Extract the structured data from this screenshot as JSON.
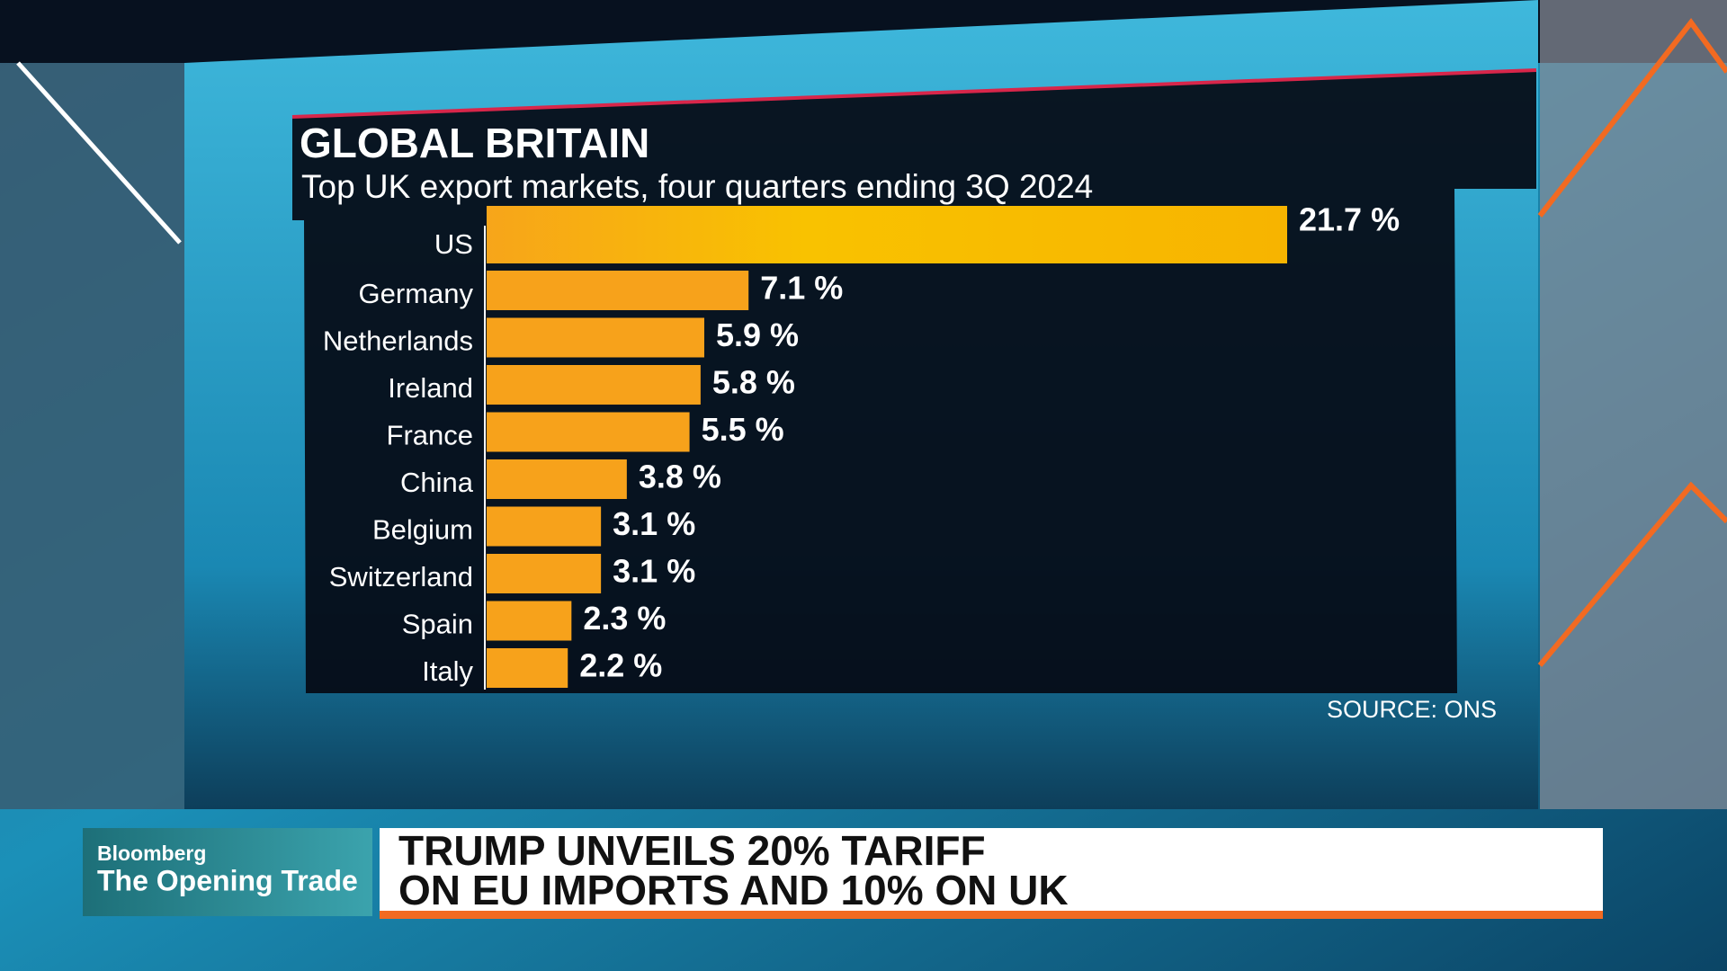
{
  "chart_data": {
    "type": "bar",
    "orientation": "horizontal",
    "title": "GLOBAL BRITAIN",
    "subtitle": "Top UK export markets, four quarters ending 3Q 2024",
    "categories": [
      "US",
      "Germany",
      "Netherlands",
      "Ireland",
      "France",
      "China",
      "Belgium",
      "Switzerland",
      "Spain",
      "Italy"
    ],
    "values": [
      21.7,
      7.1,
      5.9,
      5.8,
      5.5,
      3.8,
      3.1,
      3.1,
      2.3,
      2.2
    ],
    "value_labels": [
      "21.7 %",
      "7.1 %",
      "5.9 %",
      "5.8 %",
      "5.5 %",
      "3.8 %",
      "3.1 %",
      "3.1 %",
      "2.3 %",
      "2.2 %"
    ],
    "color": "#f7a21b",
    "highlight_color": "#f9c200",
    "source": "SOURCE: ONS"
  },
  "lower_third": {
    "brand": "Bloomberg",
    "show": "The Opening Trade",
    "headline": [
      "TRUMP UNVEILS 20% TARIFF",
      "ON EU IMPORTS AND 10% ON UK"
    ]
  }
}
